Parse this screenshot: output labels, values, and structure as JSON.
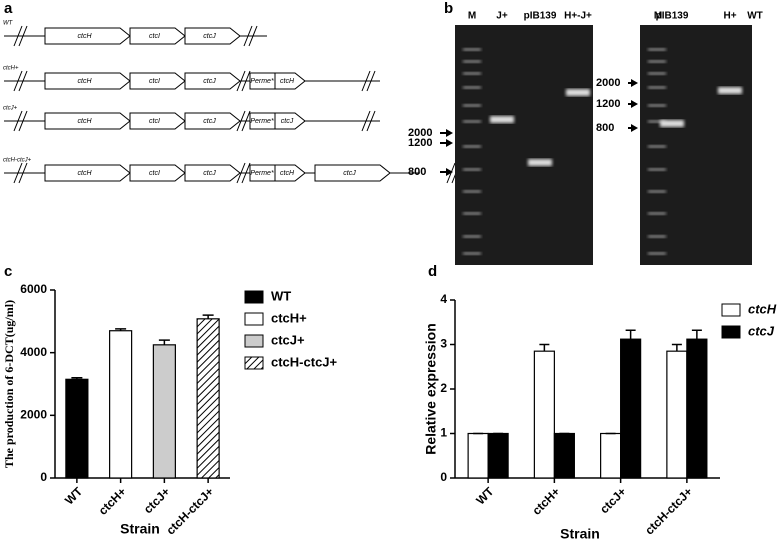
{
  "panel_labels": [
    "a",
    "b",
    "c",
    "d"
  ],
  "constructs": {
    "rows": [
      {
        "label": "WT",
        "genes": [
          "ctcH",
          "ctcI",
          "ctcJ"
        ],
        "inserts": []
      },
      {
        "label": "ctcH+",
        "genes": [
          "ctcH",
          "ctcI",
          "ctcJ"
        ],
        "inserts": [
          "Perme*",
          "ctcH"
        ]
      },
      {
        "label": "ctcJ+",
        "genes": [
          "ctcH",
          "ctcI",
          "ctcJ"
        ],
        "inserts": [
          "Perme*",
          "ctcJ"
        ]
      },
      {
        "label": "ctcH-ctcJ+",
        "genes": [
          "ctcH",
          "ctcI",
          "ctcJ"
        ],
        "inserts": [
          "Perme*",
          "ctcH",
          "ctcJ"
        ]
      }
    ]
  },
  "gels": [
    {
      "lanes": [
        "M",
        "J+",
        "pIB139",
        "H+-J+"
      ],
      "markers": [
        "2000",
        "1200",
        "800"
      ]
    },
    {
      "lanes": [
        "M",
        "pIB139",
        "H+",
        "WT"
      ],
      "markers": [
        "2000",
        "1200",
        "800"
      ]
    }
  ],
  "chart_data": [
    {
      "type": "bar",
      "y_label": "The production of 6-DCT(ug/ml)",
      "x_label": "Strain",
      "categories": [
        "WT",
        "ctcH+",
        "ctcJ+",
        "ctcH-ctcJ+"
      ],
      "values": [
        3150,
        4700,
        4250,
        5080
      ],
      "errors": [
        50,
        60,
        150,
        120
      ],
      "colors": [
        "#000000",
        "#ffffff",
        "#cccccc",
        "#ffffff"
      ],
      "hatched": [
        false,
        false,
        false,
        true
      ],
      "ylim": [
        0,
        6000
      ],
      "yticks": [
        0,
        2000,
        4000,
        6000
      ],
      "legend": "right"
    },
    {
      "type": "grouped_bar",
      "y_label": "Relative expression",
      "x_label": "Strain",
      "categories": [
        "WT",
        "ctcH+",
        "ctcJ+",
        "ctcH-ctcJ+"
      ],
      "series": [
        {
          "name": "ctcH",
          "color": "#ffffff",
          "values": [
            1,
            2.85,
            1,
            2.85
          ],
          "errors": [
            0,
            0.15,
            0,
            0.15
          ]
        },
        {
          "name": "ctcJ",
          "color": "#000000",
          "values": [
            1,
            1,
            3.12,
            3.12
          ],
          "errors": [
            0,
            0,
            0.2,
            0.2
          ]
        }
      ],
      "ylim": [
        0,
        4
      ],
      "yticks": [
        0,
        1,
        2,
        3,
        4
      ],
      "legend": "right"
    }
  ]
}
